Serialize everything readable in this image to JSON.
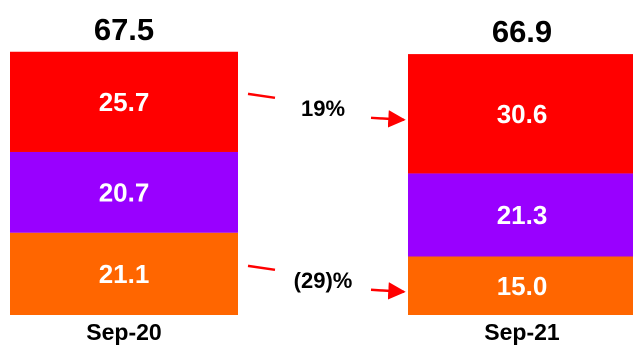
{
  "chart_data": {
    "type": "bar",
    "stacked": true,
    "categories": [
      "Sep-20",
      "Sep-21"
    ],
    "series": [
      {
        "values": [
          21.1,
          15.0
        ],
        "labels": [
          "21.1",
          "15.0"
        ],
        "color": "#ff6600"
      },
      {
        "values": [
          20.7,
          21.3
        ],
        "labels": [
          "20.7",
          "21.3"
        ],
        "color": "#9900ff"
      },
      {
        "values": [
          25.7,
          30.6
        ],
        "labels": [
          "25.7",
          "30.6"
        ],
        "color": "#ff0000"
      }
    ],
    "totals": [
      "67.5",
      "66.9"
    ],
    "annotations": [
      {
        "text": "19%",
        "from_series": 2
      },
      {
        "text": "(29)%",
        "from_series": 0
      }
    ],
    "arrow_color": "#ff0000",
    "grid": false,
    "legend": "none"
  }
}
